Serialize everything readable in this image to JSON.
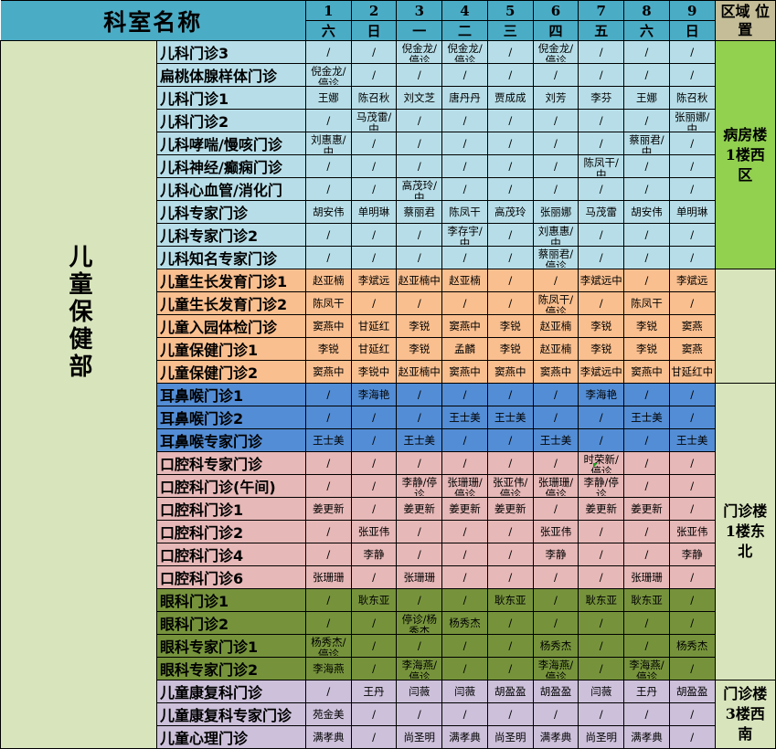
{
  "header": {
    "title": "科室名称",
    "days": [
      {
        "date": "1",
        "weekday": "六"
      },
      {
        "date": "2",
        "weekday": "日"
      },
      {
        "date": "3",
        "weekday": "一"
      },
      {
        "date": "4",
        "weekday": "二"
      },
      {
        "date": "5",
        "weekday": "三"
      },
      {
        "date": "6",
        "weekday": "四"
      },
      {
        "date": "7",
        "weekday": "五"
      },
      {
        "date": "8",
        "weekday": "六"
      },
      {
        "date": "9",
        "weekday": "日"
      }
    ],
    "region_label": "区域 位置"
  },
  "department": "儿童保健部",
  "sections": [
    {
      "color": "#b7dee8",
      "rows": [
        {
          "name": "儿科门诊3",
          "cells": [
            "/",
            "/",
            "倪金龙/停诊",
            "倪金龙/停诊",
            "/",
            "倪金龙/停诊",
            "/",
            "/",
            "/"
          ]
        },
        {
          "name": "扁桃体腺样体门诊",
          "cells": [
            "倪金龙/停诊",
            "/",
            "/",
            "/",
            "/",
            "/",
            "/",
            "/",
            "/"
          ]
        },
        {
          "name": "儿科门诊1",
          "cells": [
            "王娜",
            "陈召秋",
            "刘文芝",
            "唐丹丹",
            "贾成成",
            "刘芳",
            "李芬",
            "王娜",
            "陈召秋"
          ]
        },
        {
          "name": "儿科门诊2",
          "cells": [
            "/",
            "马茂雷/中",
            "/",
            "/",
            "/",
            "/",
            "/",
            "/",
            "张丽娜/中"
          ]
        },
        {
          "name": "儿科哮喘/慢咳门诊",
          "cells": [
            "刘惠惠/中",
            "/",
            "/",
            "/",
            "/",
            "/",
            "/",
            "蔡丽君/中",
            "/"
          ]
        },
        {
          "name": "儿科神经/癫痫门诊",
          "cells": [
            "/",
            "/",
            "/",
            "/",
            "/",
            "/",
            "陈凤干/中",
            "/",
            "/"
          ]
        },
        {
          "name": "儿科心血管/消化门",
          "cells": [
            "/",
            "/",
            "高茂玲/中",
            "/",
            "/",
            "/",
            "/",
            "/",
            "/"
          ]
        },
        {
          "name": "儿科专家门诊",
          "cells": [
            "胡安伟",
            "单明琳",
            "蔡丽君",
            "陈凤干",
            "高茂玲",
            "张丽娜",
            "马茂雷",
            "胡安伟",
            "单明琳"
          ]
        },
        {
          "name": "儿科专家门诊2",
          "cells": [
            "/",
            "/",
            "/",
            "李存宇/中",
            "/",
            "刘惠惠/中",
            "/",
            "/",
            "/"
          ]
        },
        {
          "name": "儿科知名专家门诊",
          "cells": [
            "/",
            "/",
            "/",
            "/",
            "/",
            "蔡丽君/停诊",
            "/",
            "/",
            "/"
          ]
        }
      ]
    },
    {
      "color": "#fabf8f",
      "rows": [
        {
          "name": "儿童生长发育门诊1",
          "cells": [
            "赵亚楠",
            "李斌远",
            "赵亚楠中",
            "赵亚楠",
            "/",
            "/",
            "李斌远中",
            "/",
            "李斌远"
          ]
        },
        {
          "name": "儿童生长发育门诊2",
          "cells": [
            "陈凤干",
            "/",
            "/",
            "/",
            "/",
            "陈凤干/停诊",
            "/",
            "陈凤干",
            "/"
          ]
        },
        {
          "name": "儿童入园体检门诊",
          "cells": [
            "窦燕中",
            "甘延红",
            "李锐",
            "窦燕中",
            "李锐",
            "赵亚楠",
            "李锐",
            "李锐",
            "窦燕"
          ]
        },
        {
          "name": "儿童保健门诊1",
          "cells": [
            "李锐",
            "甘延红",
            "李锐",
            "孟麟",
            "李锐",
            "赵亚楠",
            "李锐",
            "李锐",
            "窦燕"
          ]
        },
        {
          "name": "儿童保健门诊2",
          "cells": [
            "窦燕中",
            "李锐中",
            "赵亚楠中",
            "窦燕中",
            "窦燕中",
            "窦燕中",
            "李斌远中",
            "窦燕中",
            "甘延红中"
          ]
        }
      ]
    },
    {
      "color": "#538dd5",
      "rows": [
        {
          "name": "耳鼻喉门诊1",
          "cells": [
            "/",
            "李海艳",
            "/",
            "/",
            "/",
            "/",
            "李海艳",
            "/",
            "/"
          ]
        },
        {
          "name": "耳鼻喉门诊2",
          "cells": [
            "/",
            "/",
            "/",
            "王士美",
            "王士美",
            "/",
            "/",
            "王士美",
            "/"
          ]
        },
        {
          "name": "耳鼻喉专家门诊",
          "cells": [
            "王士美",
            "/",
            "王士美",
            "/",
            "/",
            "王士美",
            "/",
            "/",
            "王士美"
          ]
        }
      ]
    },
    {
      "color": "#e6b8b7",
      "rows": [
        {
          "name": "口腔科专家门诊",
          "cells": [
            "/",
            "/",
            "/",
            "/",
            "/",
            "/",
            "时荣新/停诊",
            "/",
            "/"
          ]
        },
        {
          "name": "口腔科门诊(午间)",
          "cells": [
            "/",
            "/",
            "李静/停诊",
            "张珊珊/停诊",
            "张亚伟/停诊",
            "张珊珊/停诊",
            "李静/停诊",
            "/",
            "/"
          ]
        },
        {
          "name": "口腔科门诊1",
          "cells": [
            "姜更新",
            "/",
            "姜更新",
            "姜更新",
            "姜更新",
            "/",
            "姜更新",
            "姜更新",
            "/"
          ]
        },
        {
          "name": "口腔科门诊2",
          "cells": [
            "/",
            "张亚伟",
            "/",
            "/",
            "/",
            "张亚伟",
            "/",
            "/",
            "张亚伟"
          ]
        },
        {
          "name": "口腔科门诊4",
          "cells": [
            "/",
            "李静",
            "/",
            "/",
            "/",
            "李静",
            "/",
            "/",
            "李静"
          ]
        },
        {
          "name": "口腔科门诊6",
          "cells": [
            "张珊珊",
            "/",
            "张珊珊",
            "/",
            "/",
            "/",
            "/",
            "张珊珊",
            "/"
          ]
        }
      ]
    },
    {
      "color": "#76933c",
      "rows": [
        {
          "name": "眼科门诊1",
          "cells": [
            "/",
            "耿东亚",
            "/",
            "/",
            "耿东亚",
            "/",
            "耿东亚",
            "耿东亚",
            "/"
          ]
        },
        {
          "name": "眼科门诊2",
          "cells": [
            "/",
            "/",
            "停诊/杨秀杰",
            "杨秀杰",
            "/",
            "/",
            "/",
            "/",
            "/"
          ]
        },
        {
          "name": "眼科专家门诊1",
          "cells": [
            "杨秀杰/停诊",
            "/",
            "/",
            "/",
            "/",
            "杨秀杰",
            "/",
            "/",
            "杨秀杰"
          ]
        },
        {
          "name": "眼科专家门诊2",
          "cells": [
            "李海燕",
            "/",
            "李海燕/停诊",
            "/",
            "/",
            "李海燕/停诊",
            "/",
            "李海燕/停诊",
            "/"
          ]
        }
      ]
    },
    {
      "color": "#ccc0da",
      "rows": [
        {
          "name": "儿童康复科门诊",
          "cells": [
            "/",
            "王丹",
            "闫薇",
            "闫薇",
            "胡盈盈",
            "胡盈盈",
            "闫薇",
            "王丹",
            "胡盈盈"
          ]
        },
        {
          "name": "儿童康复科专家门诊",
          "cells": [
            "苑金美",
            "/",
            "/",
            "/",
            "/",
            "/",
            "/",
            "/",
            "/"
          ]
        },
        {
          "name": "儿童心理门诊",
          "cells": [
            "满孝典",
            "/",
            "尚圣明",
            "满孝典",
            "尚圣明",
            "满孝典",
            "尚圣明",
            "满孝典",
            "/"
          ]
        }
      ]
    }
  ],
  "regions": [
    {
      "label": "病房楼1楼西区",
      "row_count": 10,
      "color": "#92d050"
    },
    {
      "label": "",
      "row_count": 5,
      "color": "#d8e4bc"
    },
    {
      "label": "门诊楼1楼东北",
      "row_count": 13,
      "color": "#d8e4bc"
    },
    {
      "label": "门诊楼3楼西南",
      "row_count": 3,
      "color": "#d8e4bc"
    }
  ]
}
